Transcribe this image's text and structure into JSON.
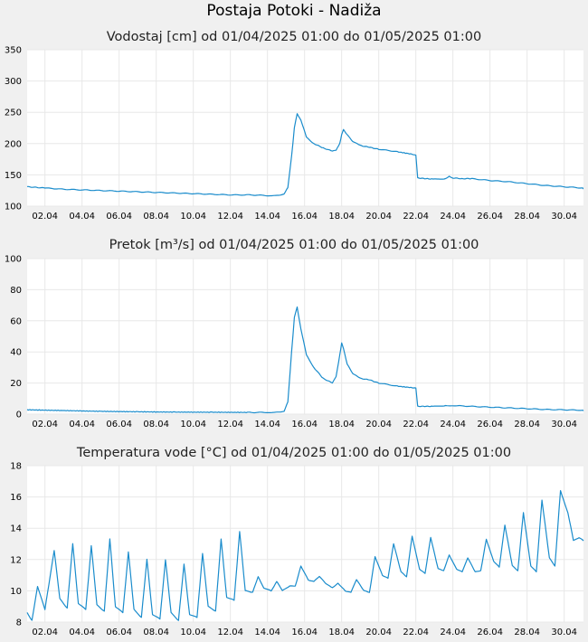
{
  "page_title": "Postaja Potoki - Nadiža",
  "colors": {
    "line": "#1a8ccc",
    "plot_bg": "#ffffff",
    "grid": "#e8e8e8",
    "page_bg": "#f0f0f0"
  },
  "chart_data": [
    {
      "type": "line",
      "title": "Vodostaj [cm] od 01/04/2025 01:00 do 01/05/2025 01:00",
      "xlabel": "",
      "ylabel": "",
      "x_ticks": [
        "02.04",
        "04.04",
        "06.04",
        "08.04",
        "10.04",
        "12.04",
        "14.04",
        "16.04",
        "18.04",
        "20.04",
        "22.04",
        "24.04",
        "26.04",
        "28.04",
        "30.04"
      ],
      "y_ticks": [
        100,
        150,
        200,
        250,
        300,
        350
      ],
      "ylim": [
        100,
        350
      ],
      "xlim_days": [
        1.04,
        31.04
      ],
      "grid": true,
      "series": [
        {
          "x": [
            1.04,
            2,
            3,
            4,
            5,
            6,
            7,
            8,
            9,
            10,
            11,
            12,
            13,
            14,
            14.6,
            14.9,
            15.1,
            15.3,
            15.45,
            15.6,
            15.8,
            16.1,
            16.5,
            17,
            17.5,
            17.7,
            17.9,
            18,
            18.1,
            18.3,
            18.6,
            19,
            19.5,
            20,
            21,
            21.8,
            22,
            22.1,
            23,
            23.6,
            23.8,
            24,
            24.5,
            25,
            26,
            27,
            28,
            29,
            30,
            31,
            31.04
          ],
          "y": [
            131,
            129,
            127,
            126,
            125,
            124,
            123,
            122,
            121,
            120,
            119,
            118,
            118,
            117,
            117,
            120,
            130,
            180,
            225,
            248,
            238,
            210,
            200,
            193,
            188,
            189,
            200,
            215,
            222,
            214,
            203,
            197,
            194,
            191,
            187,
            183,
            182,
            145,
            143,
            144,
            148,
            145,
            144,
            144,
            141,
            139,
            136,
            133,
            131,
            129,
            128
          ]
        }
      ]
    },
    {
      "type": "line",
      "title": "Pretok [m³/s] od 01/04/2025 01:00 do 01/05/2025 01:00",
      "xlabel": "",
      "ylabel": "",
      "x_ticks": [
        "02.04",
        "04.04",
        "06.04",
        "08.04",
        "10.04",
        "12.04",
        "14.04",
        "16.04",
        "18.04",
        "20.04",
        "22.04",
        "24.04",
        "26.04",
        "28.04",
        "30.04"
      ],
      "y_ticks": [
        0,
        20,
        40,
        60,
        80,
        100
      ],
      "ylim": [
        0,
        100
      ],
      "xlim_days": [
        1.04,
        31.04
      ],
      "grid": true,
      "series": [
        {
          "x": [
            1.04,
            3,
            5,
            7,
            9,
            11,
            13,
            14,
            14.6,
            14.9,
            15.1,
            15.3,
            15.45,
            15.6,
            15.8,
            16.1,
            16.5,
            17,
            17.5,
            17.7,
            17.9,
            18,
            18.1,
            18.3,
            18.6,
            19,
            19.5,
            20,
            21,
            21.8,
            22,
            22.1,
            23,
            23.6,
            24,
            25,
            26,
            27,
            28,
            29,
            30,
            31,
            31.04
          ],
          "y": [
            2.8,
            2.3,
            1.8,
            1.5,
            1.3,
            1.2,
            1.1,
            1.1,
            1.2,
            2,
            8,
            40,
            62,
            69,
            55,
            38,
            30,
            23,
            20,
            24,
            38,
            46,
            42,
            32,
            26,
            23,
            22,
            20,
            18,
            17,
            17,
            5,
            5,
            5.5,
            5.5,
            5,
            4.5,
            4,
            3.5,
            3,
            2.8,
            2.5,
            2.5
          ]
        }
      ]
    },
    {
      "type": "line",
      "title": "Temperatura vode [°C] od 01/04/2025 01:00 do 01/05/2025 01:00",
      "xlabel": "",
      "ylabel": "",
      "x_ticks": [
        "02.04",
        "04.04",
        "06.04",
        "08.04",
        "10.04",
        "12.04",
        "14.04",
        "16.04",
        "18.04",
        "20.04",
        "22.04",
        "24.04",
        "26.04",
        "28.04",
        "30.04"
      ],
      "y_ticks": [
        8,
        10,
        12,
        14,
        16,
        18
      ],
      "ylim": [
        8,
        18
      ],
      "xlim_days": [
        1.04,
        31.04
      ],
      "grid": true,
      "series": [
        {
          "x": [
            1.04,
            1.3,
            1.6,
            2.0,
            2.5,
            2.8,
            3.2,
            3.5,
            3.8,
            4.2,
            4.5,
            4.8,
            5.2,
            5.5,
            5.8,
            6.2,
            6.5,
            6.8,
            7.2,
            7.5,
            7.8,
            8.2,
            8.5,
            8.8,
            9.2,
            9.5,
            9.8,
            10.2,
            10.5,
            10.8,
            11.2,
            11.5,
            11.8,
            12.2,
            12.5,
            12.8,
            13.2,
            13.5,
            13.8,
            14.2,
            14.5,
            14.8,
            15.2,
            15.5,
            15.8,
            16.2,
            16.5,
            16.8,
            17.2,
            17.5,
            17.8,
            18.2,
            18.5,
            18.8,
            19.2,
            19.5,
            19.8,
            20.2,
            20.5,
            20.8,
            21.2,
            21.5,
            21.8,
            22.2,
            22.5,
            22.8,
            23.2,
            23.5,
            23.8,
            24.2,
            24.5,
            24.8,
            25.2,
            25.5,
            25.8,
            26.2,
            26.5,
            26.8,
            27.2,
            27.5,
            27.8,
            28.2,
            28.5,
            28.8,
            29.2,
            29.5,
            29.8,
            30.2,
            30.5,
            30.8,
            31.04
          ],
          "y": [
            8.6,
            8.1,
            10.3,
            8.8,
            12.6,
            9.5,
            8.9,
            13.0,
            9.2,
            8.8,
            12.9,
            9.1,
            8.7,
            13.3,
            9.0,
            8.6,
            12.5,
            8.8,
            8.3,
            12.0,
            8.5,
            8.2,
            12.0,
            8.6,
            8.1,
            11.7,
            8.5,
            8.3,
            12.4,
            9.0,
            8.7,
            13.3,
            9.6,
            9.4,
            13.8,
            10.0,
            9.9,
            10.9,
            10.2,
            10.0,
            10.6,
            10.0,
            10.3,
            10.3,
            11.6,
            10.7,
            10.6,
            10.9,
            10.4,
            10.2,
            10.5,
            10.0,
            9.9,
            10.7,
            10.0,
            9.9,
            12.2,
            11.0,
            10.8,
            13.0,
            11.2,
            10.9,
            13.5,
            11.4,
            11.1,
            13.4,
            11.4,
            11.3,
            12.3,
            11.4,
            11.2,
            12.1,
            11.2,
            11.3,
            13.3,
            11.9,
            11.5,
            14.2,
            11.6,
            11.3,
            15.0,
            11.6,
            11.2,
            15.8,
            12.1,
            11.6,
            16.4,
            15.0,
            13.2,
            13.4,
            13.2
          ]
        }
      ]
    }
  ]
}
